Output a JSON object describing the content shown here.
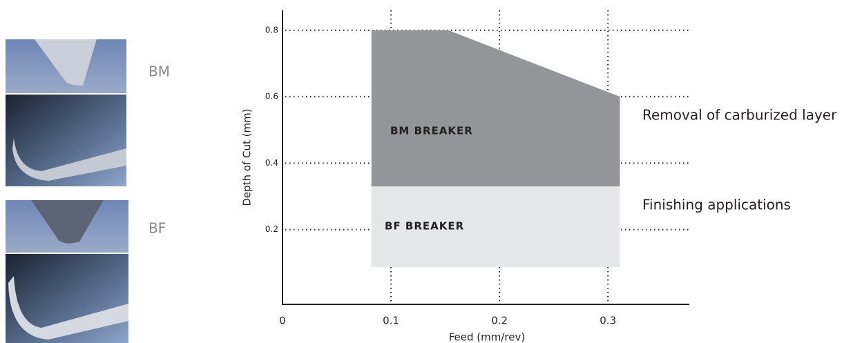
{
  "inserts": [
    {
      "label": "BM"
    },
    {
      "label": "BF"
    }
  ],
  "chart_data": {
    "type": "area",
    "xlabel": "Feed (mm/rev)",
    "ylabel": "Depth of Cut (mm)",
    "xlim": [
      0,
      0.375
    ],
    "ylim": [
      -0.025,
      0.86
    ],
    "xticks": [
      0,
      0.1,
      0.2,
      0.3
    ],
    "yticks": [
      0.2,
      0.4,
      0.6,
      0.8
    ],
    "grid": true,
    "series": [
      {
        "name": "BM BREAKER",
        "color": "#939598",
        "x": [
          0.082,
          0.082,
          0.153,
          0.311,
          0.311
        ],
        "values": [
          0.33,
          0.8,
          0.8,
          0.6,
          0.33
        ]
      },
      {
        "name": "BF BREAKER",
        "color": "#e6e7e8",
        "x": [
          0.082,
          0.082,
          0.311,
          0.311
        ],
        "values": [
          0.0875,
          0.33,
          0.33,
          0.0875
        ]
      }
    ],
    "annotations": [
      "Removal of carburized layer",
      "Finishing applications"
    ]
  }
}
